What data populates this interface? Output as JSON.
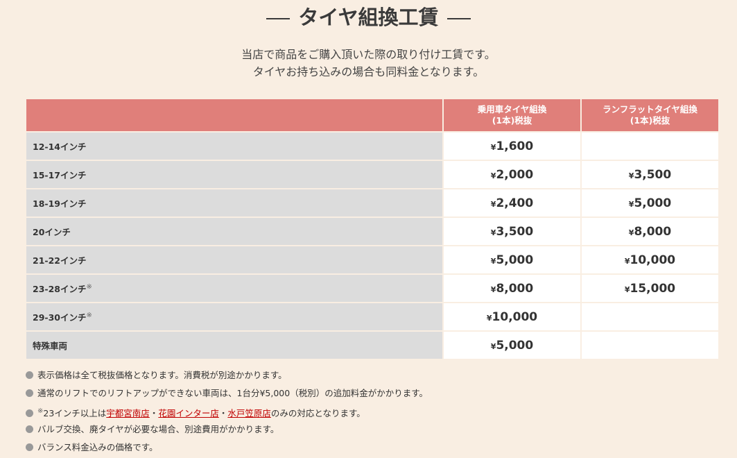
{
  "header": {
    "title": "タイヤ組換工賃",
    "intro": [
      "当店で商品をご購入頂いた際の取り付け工賃です。",
      "タイヤお持ち込みの場合も同料金となります。"
    ]
  },
  "table": {
    "columns": [
      null,
      [
        "乗用車タイヤ組換",
        "(1本)税抜"
      ],
      [
        "ランフラットタイヤ組換",
        "(1本)税抜"
      ]
    ],
    "rows": [
      {
        "label": "12-14インチ",
        "note": null,
        "prices": [
          "¥1,600",
          null
        ]
      },
      {
        "label": "15-17インチ",
        "note": null,
        "prices": [
          "¥2,000",
          "¥3,500"
        ]
      },
      {
        "label": "18-19インチ",
        "note": null,
        "prices": [
          "¥2,400",
          "¥5,000"
        ]
      },
      {
        "label": "20インチ",
        "note": null,
        "prices": [
          "¥3,500",
          "¥8,000"
        ]
      },
      {
        "label": "21-22インチ",
        "note": null,
        "prices": [
          "¥5,000",
          "¥10,000"
        ]
      },
      {
        "label": "23-28インチ",
        "note": "※",
        "prices": [
          "¥8,000",
          "¥15,000"
        ]
      },
      {
        "label": "29-30インチ",
        "note": "※",
        "prices": [
          "¥10,000",
          null
        ]
      },
      {
        "label": "特殊車両",
        "note": null,
        "prices": [
          "¥5,000",
          null
        ]
      }
    ]
  },
  "notes": [
    {
      "text": "表示価格は全て税抜価格となります。消費税が別途かかります。"
    },
    {
      "text": "通常のリフトでのリフトアップができない車両は、1台分¥5,000（税別）の追加料金がかかります。"
    },
    {
      "mark": "※",
      "text": "23インチ以上は",
      "links": [
        "宇都宮南店",
        "花園インター店",
        "水戸笠原店"
      ],
      "separator": "・",
      "tail": "のみの対応となります。"
    },
    {
      "text": "バルブ交換、廃タイヤが必要な場合、別途費用がかかります。"
    },
    {
      "text": "バランス料金込みの価格です。"
    }
  ]
}
